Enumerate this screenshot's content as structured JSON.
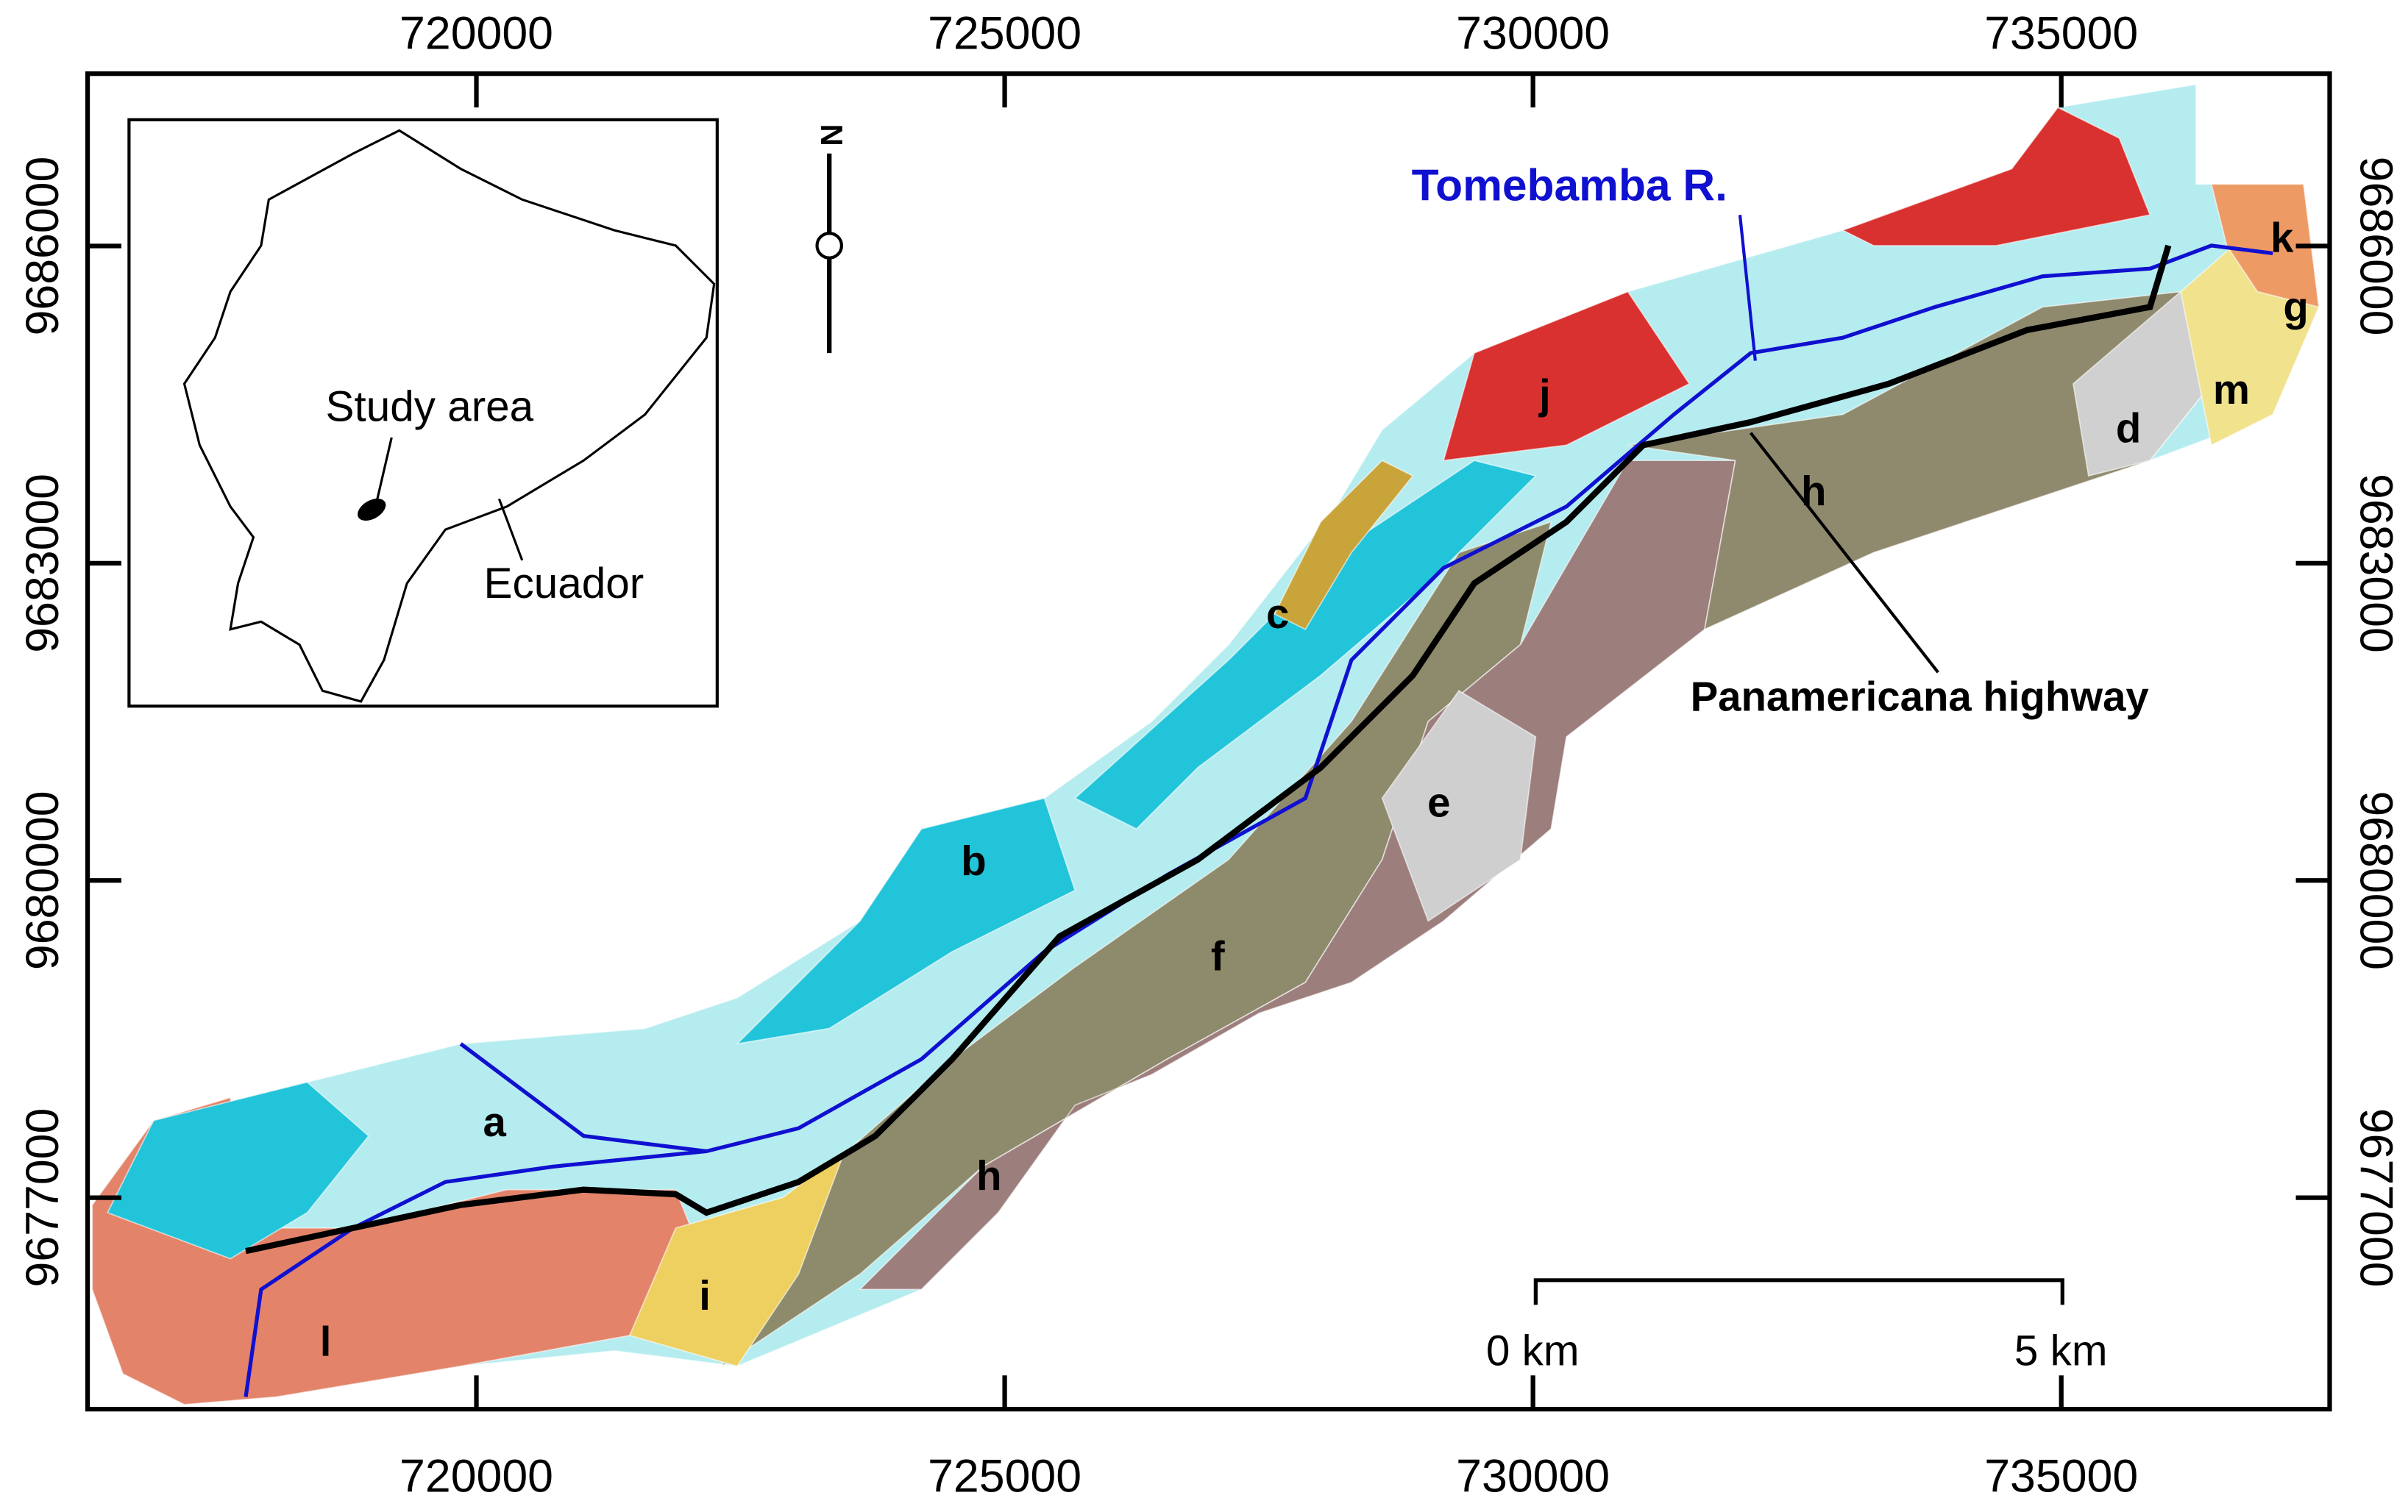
{
  "map": {
    "xlim": [
      716320,
      737540
    ],
    "ylim": [
      9675000,
      9687630
    ],
    "xticks": [
      720000,
      725000,
      730000,
      735000
    ],
    "yticks": [
      9677000,
      9680000,
      9683000,
      9686000
    ]
  },
  "annotations": {
    "river": "Tomebamba R.",
    "highway": "Panamericana highway",
    "north": "N",
    "scale_start": "0 km",
    "scale_end": "5 km"
  },
  "inset": {
    "study_area": "Study area",
    "country": "Ecuador"
  },
  "units": [
    "a",
    "b",
    "c",
    "d",
    "e",
    "f",
    "g",
    "h",
    "h",
    "i",
    "j",
    "k",
    "l",
    "m"
  ]
}
